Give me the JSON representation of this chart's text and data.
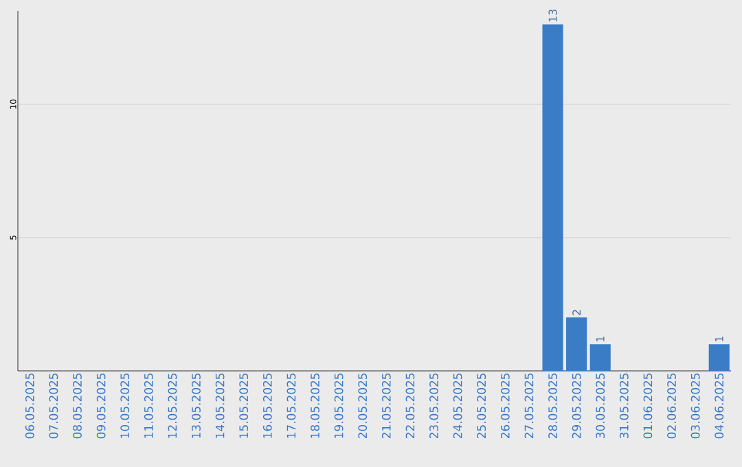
{
  "chart_data": {
    "type": "bar",
    "categories": [
      "06.05.2025",
      "07.05.2025",
      "08.05.2025",
      "09.05.2025",
      "10.05.2025",
      "11.05.2025",
      "12.05.2025",
      "13.05.2025",
      "14.05.2025",
      "15.05.2025",
      "16.05.2025",
      "17.05.2025",
      "18.05.2025",
      "19.05.2025",
      "20.05.2025",
      "21.05.2025",
      "22.05.2025",
      "23.05.2025",
      "24.05.2025",
      "25.05.2025",
      "26.05.2025",
      "27.05.2025",
      "28.05.2025",
      "29.05.2025",
      "30.05.2025",
      "31.05.2025",
      "01.06.2025",
      "02.06.2025",
      "03.06.2025",
      "04.06.2025"
    ],
    "values": [
      0,
      0,
      0,
      0,
      0,
      0,
      0,
      0,
      0,
      0,
      0,
      0,
      0,
      0,
      0,
      0,
      0,
      0,
      0,
      0,
      0,
      0,
      13,
      2,
      1,
      0,
      0,
      0,
      0,
      1
    ],
    "value_labels": [
      null,
      null,
      null,
      null,
      null,
      null,
      null,
      null,
      null,
      null,
      null,
      null,
      null,
      null,
      null,
      null,
      null,
      null,
      null,
      null,
      null,
      null,
      "13",
      "2",
      "1",
      null,
      null,
      null,
      null,
      "1"
    ],
    "color": "#3a7cc6",
    "ylim": [
      0,
      13.5
    ],
    "yticks": [
      5,
      10
    ],
    "grid": "y"
  }
}
